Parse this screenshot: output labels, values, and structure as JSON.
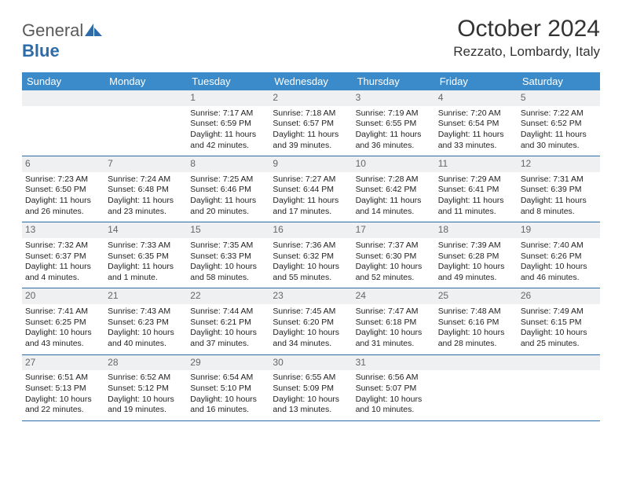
{
  "logo": {
    "word1": "General",
    "word2": "Blue",
    "accent_color": "#2d6ca8"
  },
  "title": "October 2024",
  "location": "Rezzato, Lombardy, Italy",
  "header_bg": "#3b8bca",
  "number_bg": "#eef0f2",
  "daynames": [
    "Sunday",
    "Monday",
    "Tuesday",
    "Wednesday",
    "Thursday",
    "Friday",
    "Saturday"
  ],
  "weeks": [
    [
      {
        "n": "",
        "empty": true
      },
      {
        "n": "",
        "empty": true
      },
      {
        "n": "1",
        "sr": "Sunrise: 7:17 AM",
        "ss": "Sunset: 6:59 PM",
        "dl": "Daylight: 11 hours and 42 minutes."
      },
      {
        "n": "2",
        "sr": "Sunrise: 7:18 AM",
        "ss": "Sunset: 6:57 PM",
        "dl": "Daylight: 11 hours and 39 minutes."
      },
      {
        "n": "3",
        "sr": "Sunrise: 7:19 AM",
        "ss": "Sunset: 6:55 PM",
        "dl": "Daylight: 11 hours and 36 minutes."
      },
      {
        "n": "4",
        "sr": "Sunrise: 7:20 AM",
        "ss": "Sunset: 6:54 PM",
        "dl": "Daylight: 11 hours and 33 minutes."
      },
      {
        "n": "5",
        "sr": "Sunrise: 7:22 AM",
        "ss": "Sunset: 6:52 PM",
        "dl": "Daylight: 11 hours and 30 minutes."
      }
    ],
    [
      {
        "n": "6",
        "sr": "Sunrise: 7:23 AM",
        "ss": "Sunset: 6:50 PM",
        "dl": "Daylight: 11 hours and 26 minutes."
      },
      {
        "n": "7",
        "sr": "Sunrise: 7:24 AM",
        "ss": "Sunset: 6:48 PM",
        "dl": "Daylight: 11 hours and 23 minutes."
      },
      {
        "n": "8",
        "sr": "Sunrise: 7:25 AM",
        "ss": "Sunset: 6:46 PM",
        "dl": "Daylight: 11 hours and 20 minutes."
      },
      {
        "n": "9",
        "sr": "Sunrise: 7:27 AM",
        "ss": "Sunset: 6:44 PM",
        "dl": "Daylight: 11 hours and 17 minutes."
      },
      {
        "n": "10",
        "sr": "Sunrise: 7:28 AM",
        "ss": "Sunset: 6:42 PM",
        "dl": "Daylight: 11 hours and 14 minutes."
      },
      {
        "n": "11",
        "sr": "Sunrise: 7:29 AM",
        "ss": "Sunset: 6:41 PM",
        "dl": "Daylight: 11 hours and 11 minutes."
      },
      {
        "n": "12",
        "sr": "Sunrise: 7:31 AM",
        "ss": "Sunset: 6:39 PM",
        "dl": "Daylight: 11 hours and 8 minutes."
      }
    ],
    [
      {
        "n": "13",
        "sr": "Sunrise: 7:32 AM",
        "ss": "Sunset: 6:37 PM",
        "dl": "Daylight: 11 hours and 4 minutes."
      },
      {
        "n": "14",
        "sr": "Sunrise: 7:33 AM",
        "ss": "Sunset: 6:35 PM",
        "dl": "Daylight: 11 hours and 1 minute."
      },
      {
        "n": "15",
        "sr": "Sunrise: 7:35 AM",
        "ss": "Sunset: 6:33 PM",
        "dl": "Daylight: 10 hours and 58 minutes."
      },
      {
        "n": "16",
        "sr": "Sunrise: 7:36 AM",
        "ss": "Sunset: 6:32 PM",
        "dl": "Daylight: 10 hours and 55 minutes."
      },
      {
        "n": "17",
        "sr": "Sunrise: 7:37 AM",
        "ss": "Sunset: 6:30 PM",
        "dl": "Daylight: 10 hours and 52 minutes."
      },
      {
        "n": "18",
        "sr": "Sunrise: 7:39 AM",
        "ss": "Sunset: 6:28 PM",
        "dl": "Daylight: 10 hours and 49 minutes."
      },
      {
        "n": "19",
        "sr": "Sunrise: 7:40 AM",
        "ss": "Sunset: 6:26 PM",
        "dl": "Daylight: 10 hours and 46 minutes."
      }
    ],
    [
      {
        "n": "20",
        "sr": "Sunrise: 7:41 AM",
        "ss": "Sunset: 6:25 PM",
        "dl": "Daylight: 10 hours and 43 minutes."
      },
      {
        "n": "21",
        "sr": "Sunrise: 7:43 AM",
        "ss": "Sunset: 6:23 PM",
        "dl": "Daylight: 10 hours and 40 minutes."
      },
      {
        "n": "22",
        "sr": "Sunrise: 7:44 AM",
        "ss": "Sunset: 6:21 PM",
        "dl": "Daylight: 10 hours and 37 minutes."
      },
      {
        "n": "23",
        "sr": "Sunrise: 7:45 AM",
        "ss": "Sunset: 6:20 PM",
        "dl": "Daylight: 10 hours and 34 minutes."
      },
      {
        "n": "24",
        "sr": "Sunrise: 7:47 AM",
        "ss": "Sunset: 6:18 PM",
        "dl": "Daylight: 10 hours and 31 minutes."
      },
      {
        "n": "25",
        "sr": "Sunrise: 7:48 AM",
        "ss": "Sunset: 6:16 PM",
        "dl": "Daylight: 10 hours and 28 minutes."
      },
      {
        "n": "26",
        "sr": "Sunrise: 7:49 AM",
        "ss": "Sunset: 6:15 PM",
        "dl": "Daylight: 10 hours and 25 minutes."
      }
    ],
    [
      {
        "n": "27",
        "sr": "Sunrise: 6:51 AM",
        "ss": "Sunset: 5:13 PM",
        "dl": "Daylight: 10 hours and 22 minutes."
      },
      {
        "n": "28",
        "sr": "Sunrise: 6:52 AM",
        "ss": "Sunset: 5:12 PM",
        "dl": "Daylight: 10 hours and 19 minutes."
      },
      {
        "n": "29",
        "sr": "Sunrise: 6:54 AM",
        "ss": "Sunset: 5:10 PM",
        "dl": "Daylight: 10 hours and 16 minutes."
      },
      {
        "n": "30",
        "sr": "Sunrise: 6:55 AM",
        "ss": "Sunset: 5:09 PM",
        "dl": "Daylight: 10 hours and 13 minutes."
      },
      {
        "n": "31",
        "sr": "Sunrise: 6:56 AM",
        "ss": "Sunset: 5:07 PM",
        "dl": "Daylight: 10 hours and 10 minutes."
      },
      {
        "n": "",
        "empty": true
      },
      {
        "n": "",
        "empty": true
      }
    ]
  ]
}
